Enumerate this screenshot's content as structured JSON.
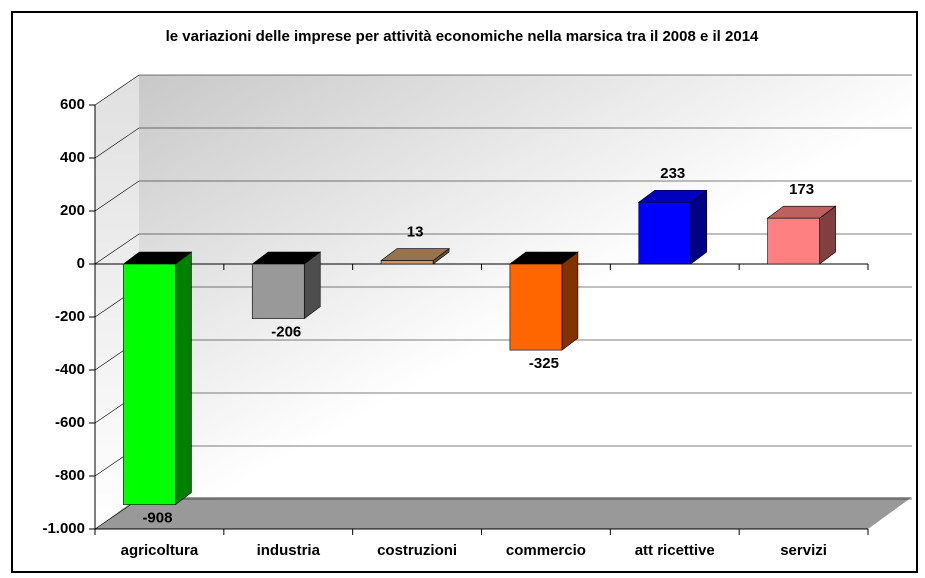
{
  "chart_data": {
    "type": "bar",
    "title": "le variazioni delle imprese per attività economiche nella marsica tra il 2008 e il 2014",
    "categories": [
      "agricoltura",
      "industria",
      "costruzioni",
      "commercio",
      "att ricettive",
      "servizi"
    ],
    "values": [
      -908,
      -206,
      13,
      -325,
      233,
      173
    ],
    "colors": [
      "#00ff00",
      "#999999",
      "#cc9966",
      "#ff6600",
      "#0000ff",
      "#ff8080"
    ],
    "ylim": [
      -1000,
      600
    ],
    "yticks": [
      {
        "value": -1000,
        "label": "-1.000"
      },
      -800,
      -600,
      -400,
      -200,
      0,
      200,
      400,
      600
    ],
    "grid": true
  }
}
